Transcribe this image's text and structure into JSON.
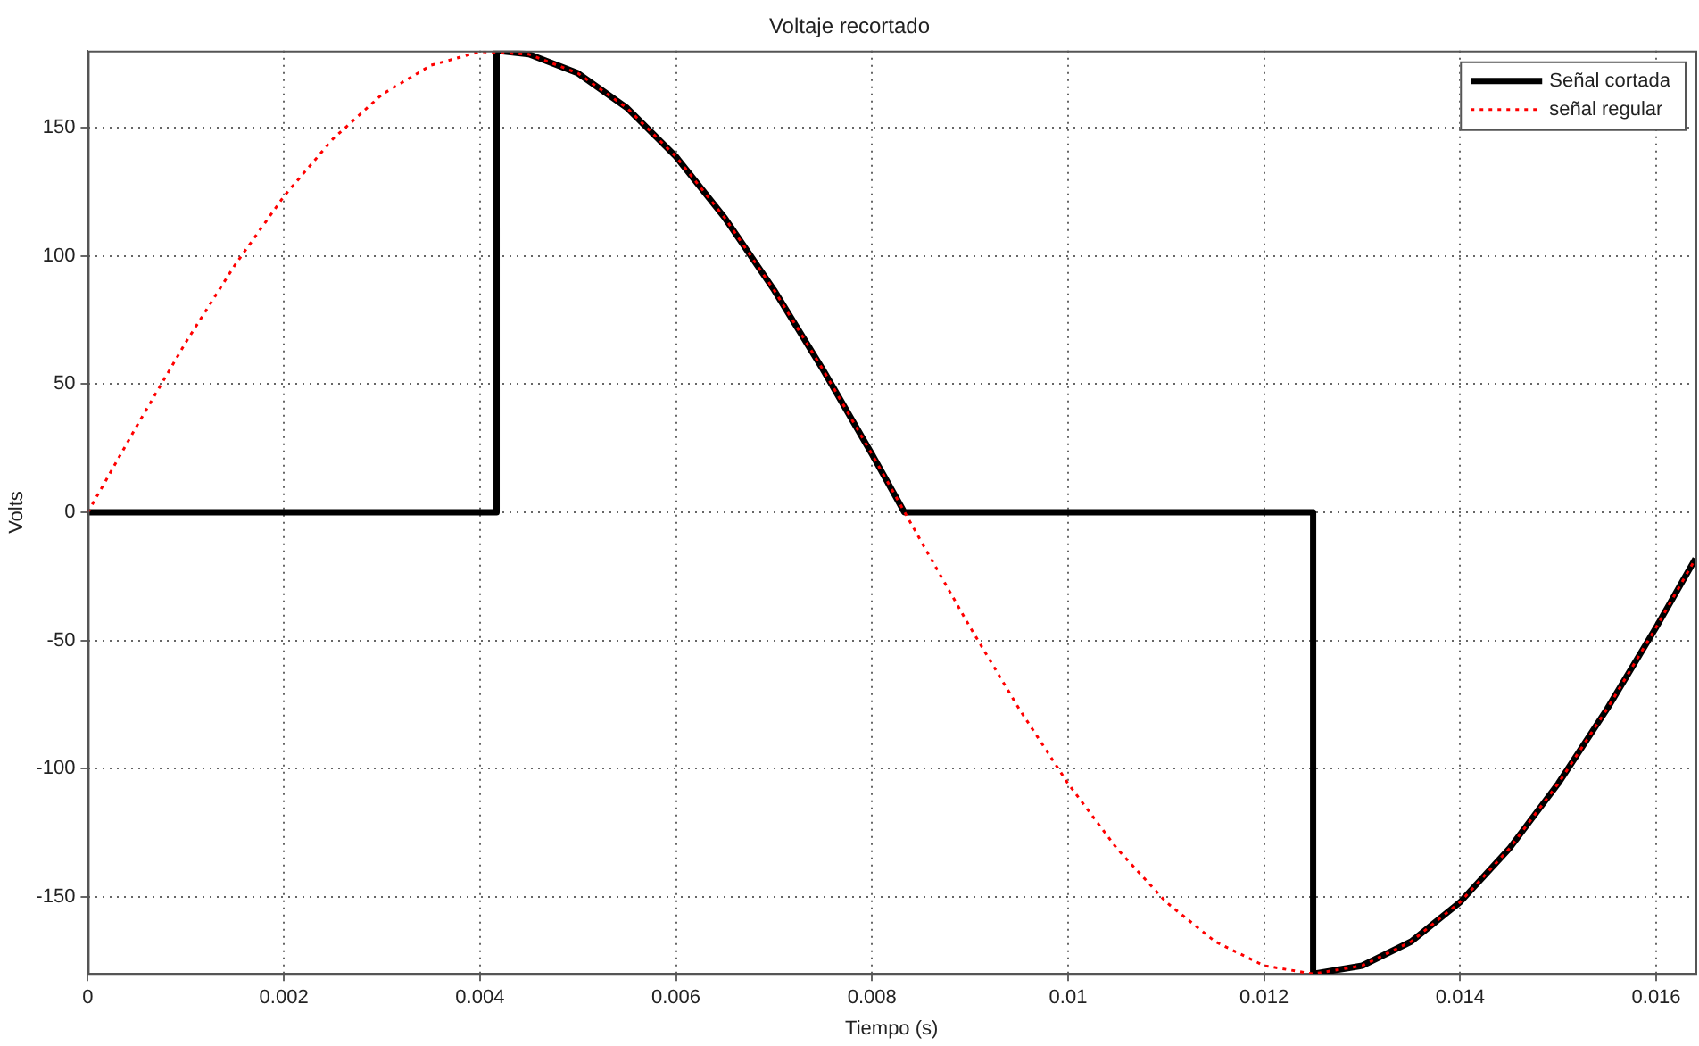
{
  "chart_data": {
    "type": "line",
    "title": "Voltaje recortado",
    "xlabel": "Tiempo (s)",
    "ylabel": "Volts",
    "xlim": [
      0,
      0.0164
    ],
    "xticks": [
      0,
      0.002,
      0.004,
      0.006,
      0.008,
      0.01,
      0.012,
      0.014,
      0.016
    ],
    "ylim": [
      -180,
      180
    ],
    "yticks": [
      -150,
      -100,
      -50,
      0,
      50,
      100,
      150
    ],
    "grid": true,
    "legend": "top right",
    "marker": "none",
    "series": [
      {
        "name": "Señal cortada",
        "color": "#000000",
        "line_style": "solid",
        "x": [
          0,
          0.00417,
          0.00417,
          0.0045,
          0.005,
          0.0055,
          0.006,
          0.0065,
          0.007,
          0.0075,
          0.008,
          0.00833,
          0.0125,
          0.0125,
          0.013,
          0.0135,
          0.014,
          0.0145,
          0.015,
          0.0155,
          0.016,
          0.0164
        ],
        "values": [
          0,
          0,
          180,
          178.6,
          171.2,
          157.7,
          138.7,
          114.7,
          86.7,
          55.6,
          22.6,
          0,
          0,
          -180,
          -176.8,
          -167.4,
          -152.0,
          -131.2,
          -105.8,
          -76.6,
          -44.8,
          -18.1
        ]
      },
      {
        "name": "señal regular",
        "color": "#ff0000",
        "line_style": "dotted",
        "x": [
          0,
          0.0005,
          0.001,
          0.0015,
          0.002,
          0.0025,
          0.003,
          0.0035,
          0.004,
          0.0045,
          0.005,
          0.0055,
          0.006,
          0.0065,
          0.007,
          0.0075,
          0.008,
          0.0085,
          0.009,
          0.0095,
          0.01,
          0.0105,
          0.011,
          0.0115,
          0.012,
          0.0125,
          0.013,
          0.0135,
          0.014,
          0.0145,
          0.015,
          0.0155,
          0.016,
          0.0164
        ],
        "values": [
          0,
          33.7,
          66.3,
          96.4,
          123.2,
          145.6,
          162.9,
          174.3,
          179.6,
          178.6,
          171.2,
          157.7,
          138.7,
          114.7,
          86.7,
          55.6,
          22.6,
          -11.3,
          -44.8,
          -76.6,
          -105.8,
          -131.2,
          -152.0,
          -167.4,
          -176.8,
          -180,
          -176.8,
          -167.4,
          -152.0,
          -131.2,
          -105.8,
          -76.6,
          -44.8,
          -18.1
        ]
      }
    ]
  }
}
